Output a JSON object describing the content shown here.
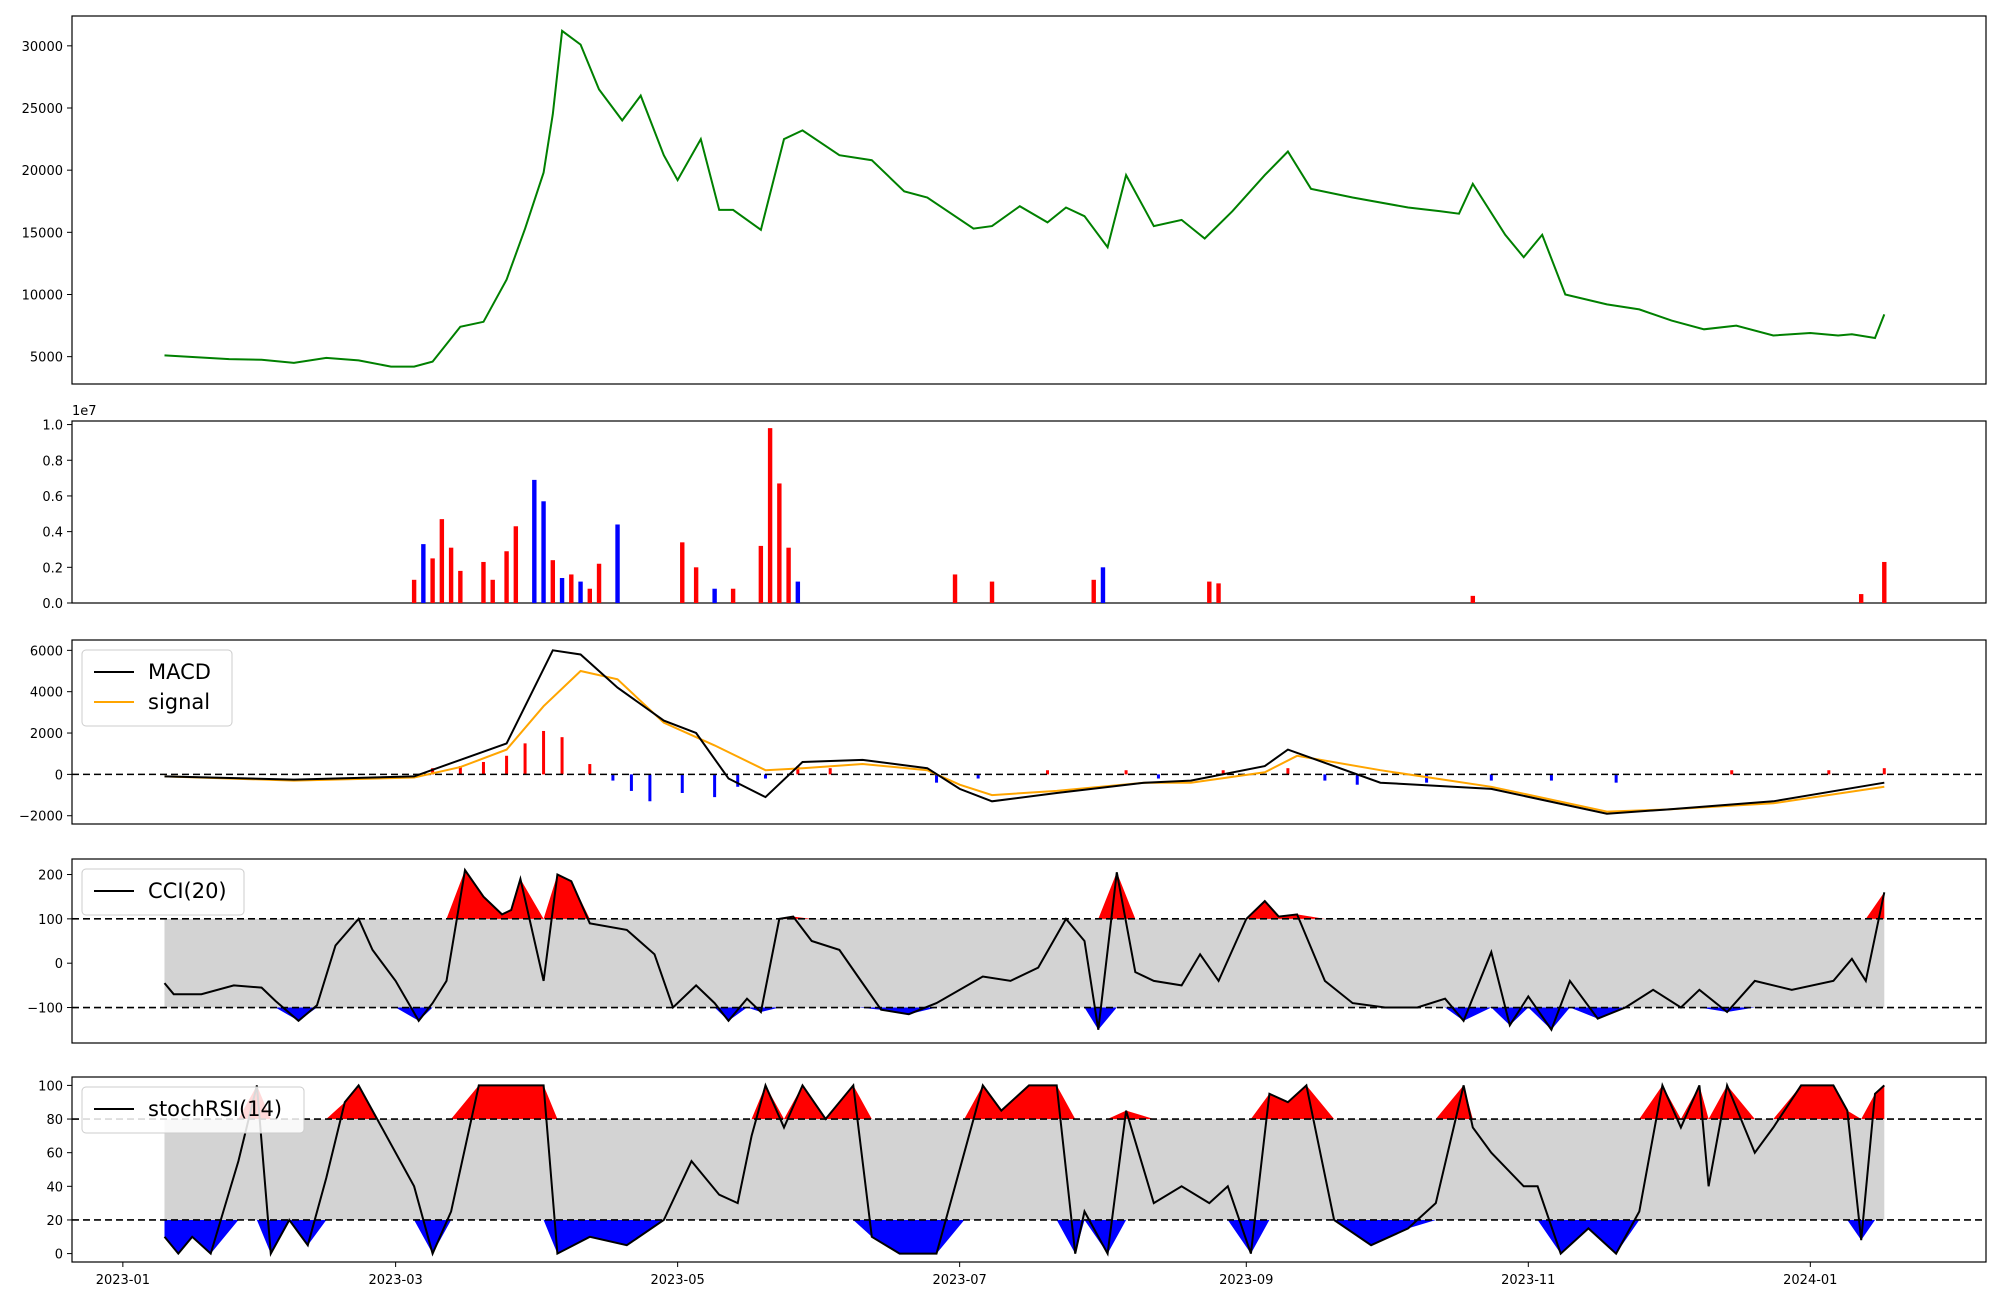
{
  "colors": {
    "price": "#008000",
    "up": "#ff0000",
    "down": "#0000ff",
    "macd": "#000000",
    "signal": "#ffa500",
    "band": "#d3d3d3"
  },
  "chart_data": [
    {
      "type": "line",
      "panel": "price",
      "x_range": [
        "2022-12-21",
        "2024-02-08"
      ],
      "ylim": [
        2800,
        32400
      ],
      "yticks": [
        5000,
        10000,
        15000,
        20000,
        25000,
        30000
      ],
      "ytick_labels": [
        "5000",
        "10000",
        "15000",
        "20000",
        "25000",
        "30000"
      ],
      "series": [
        {
          "x": [
            "2023-01-10",
            "2023-01-17",
            "2023-01-24",
            "2023-01-31",
            "2023-02-07",
            "2023-02-14",
            "2023-02-21",
            "2023-02-28",
            "2023-03-05",
            "2023-03-09",
            "2023-03-15",
            "2023-03-20",
            "2023-03-25",
            "2023-03-29",
            "2023-04-02",
            "2023-04-04",
            "2023-04-06",
            "2023-04-10",
            "2023-04-14",
            "2023-04-19",
            "2023-04-23",
            "2023-04-28",
            "2023-05-01",
            "2023-05-06",
            "2023-05-10",
            "2023-05-13",
            "2023-05-19",
            "2023-05-24",
            "2023-05-28",
            "2023-06-05",
            "2023-06-12",
            "2023-06-19",
            "2023-06-24",
            "2023-07-04",
            "2023-07-08",
            "2023-07-14",
            "2023-07-20",
            "2023-07-24",
            "2023-07-28",
            "2023-08-02",
            "2023-08-06",
            "2023-08-12",
            "2023-08-18",
            "2023-08-23",
            "2023-08-29",
            "2023-09-05",
            "2023-09-10",
            "2023-09-15",
            "2023-09-24",
            "2023-10-06",
            "2023-10-13",
            "2023-10-17",
            "2023-10-20",
            "2023-10-27",
            "2023-10-31",
            "2023-11-04",
            "2023-11-09",
            "2023-11-18",
            "2023-11-25",
            "2023-12-02",
            "2023-12-09",
            "2023-12-16",
            "2023-12-24",
            "2024-01-01",
            "2024-01-07",
            "2024-01-10",
            "2024-01-15",
            "2024-01-17"
          ],
          "values": [
            5100,
            4950,
            4800,
            4750,
            4500,
            4900,
            4700,
            4200,
            4200,
            4600,
            7400,
            7800,
            11200,
            15300,
            19800,
            24500,
            31200,
            30100,
            26500,
            24000,
            26000,
            21200,
            19200,
            22500,
            16800,
            16800,
            15200,
            22500,
            23200,
            21200,
            20800,
            18300,
            17800,
            15300,
            15500,
            17100,
            15800,
            17000,
            16300,
            13800,
            19600,
            15500,
            16000,
            14500,
            16700,
            19600,
            21500,
            18500,
            17800,
            17000,
            16700,
            16500,
            18900,
            14800,
            13000,
            14800,
            10000,
            9200,
            8800,
            7900,
            7200,
            7500,
            6700,
            6900,
            6700,
            6800,
            6500,
            8400
          ]
        }
      ]
    },
    {
      "type": "bar",
      "panel": "volume",
      "x_range": [
        "2022-12-21",
        "2024-02-08"
      ],
      "ylim": [
        0,
        10200000
      ],
      "yticks": [
        0,
        2000000,
        4000000,
        6000000,
        8000000,
        10000000
      ],
      "ytick_labels": [
        "0.0",
        "0.2",
        "0.4",
        "0.6",
        "0.8",
        "1.0"
      ],
      "scale_label": "1e7",
      "series": [
        {
          "x": [
            "2023-03-05",
            "2023-03-07",
            "2023-03-09",
            "2023-03-11",
            "2023-03-13",
            "2023-03-15",
            "2023-03-20",
            "2023-03-22",
            "2023-03-25",
            "2023-03-27",
            "2023-03-31",
            "2023-04-02",
            "2023-04-04",
            "2023-04-06",
            "2023-04-08",
            "2023-04-10",
            "2023-04-12",
            "2023-04-14",
            "2023-04-18",
            "2023-05-02",
            "2023-05-05",
            "2023-05-09",
            "2023-05-13",
            "2023-05-19",
            "2023-05-21",
            "2023-05-23",
            "2023-05-25",
            "2023-05-27",
            "2023-06-30",
            "2023-07-08",
            "2023-07-30",
            "2023-08-01",
            "2023-08-24",
            "2023-08-26",
            "2023-10-20",
            "2024-01-12",
            "2024-01-17"
          ],
          "values": [
            1300000,
            3300000,
            2500000,
            4700000,
            3100000,
            1800000,
            2300000,
            1300000,
            2900000,
            4300000,
            6900000,
            5700000,
            2400000,
            1400000,
            1600000,
            1200000,
            800000,
            2200000,
            4400000,
            3400000,
            2000000,
            800000,
            800000,
            3200000,
            9800000,
            6700000,
            3100000,
            1200000,
            1600000,
            1200000,
            1300000,
            2000000,
            1200000,
            1100000,
            400000,
            500000,
            2300000
          ],
          "colors": [
            "up",
            "down",
            "up",
            "up",
            "up",
            "up",
            "up",
            "up",
            "up",
            "up",
            "down",
            "down",
            "up",
            "down",
            "up",
            "down",
            "up",
            "up",
            "down",
            "up",
            "up",
            "down",
            "up",
            "up",
            "up",
            "up",
            "up",
            "down",
            "up",
            "up",
            "up",
            "down",
            "up",
            "up",
            "up",
            "up",
            "up"
          ]
        }
      ]
    },
    {
      "type": "line",
      "panel": "macd",
      "x_range": [
        "2022-12-21",
        "2024-02-08"
      ],
      "ylim": [
        -2400,
        6500
      ],
      "yticks": [
        -2000,
        0,
        2000,
        4000,
        6000
      ],
      "ytick_labels": [
        "−2000",
        "0",
        "2000",
        "4000",
        "6000"
      ],
      "reference_lines": [
        0
      ],
      "legend": [
        "MACD",
        "signal"
      ],
      "series": [
        {
          "name": "MACD",
          "x": [
            "2023-01-10",
            "2023-02-07",
            "2023-03-05",
            "2023-03-15",
            "2023-03-25",
            "2023-04-04",
            "2023-04-10",
            "2023-04-18",
            "2023-04-28",
            "2023-05-05",
            "2023-05-12",
            "2023-05-20",
            "2023-05-28",
            "2023-06-10",
            "2023-06-24",
            "2023-07-01",
            "2023-07-08",
            "2023-07-22",
            "2023-08-10",
            "2023-08-20",
            "2023-09-05",
            "2023-09-10",
            "2023-09-30",
            "2023-10-24",
            "2023-11-18",
            "2023-12-01",
            "2023-12-24",
            "2024-01-17"
          ],
          "values": [
            -100,
            -250,
            -100,
            700,
            1500,
            6000,
            5800,
            4200,
            2600,
            2000,
            -200,
            -1100,
            600,
            700,
            300,
            -700,
            -1300,
            -900,
            -400,
            -300,
            400,
            1200,
            -400,
            -700,
            -1900,
            -1700,
            -1300,
            -400
          ]
        },
        {
          "name": "signal",
          "x": [
            "2023-01-10",
            "2023-02-07",
            "2023-03-05",
            "2023-03-15",
            "2023-03-25",
            "2023-04-02",
            "2023-04-10",
            "2023-04-18",
            "2023-04-28",
            "2023-05-09",
            "2023-05-20",
            "2023-05-28",
            "2023-06-10",
            "2023-06-24",
            "2023-07-01",
            "2023-07-08",
            "2023-07-22",
            "2023-08-10",
            "2023-08-20",
            "2023-09-05",
            "2023-09-12",
            "2023-09-30",
            "2023-10-24",
            "2023-11-18",
            "2023-12-01",
            "2023-12-24",
            "2024-01-17"
          ],
          "values": [
            -100,
            -300,
            -150,
            350,
            1200,
            3300,
            5000,
            4600,
            2500,
            1400,
            200,
            300,
            500,
            200,
            -500,
            -1000,
            -800,
            -400,
            -400,
            100,
            900,
            200,
            -600,
            -1800,
            -1700,
            -1400,
            -600
          ]
        }
      ],
      "histogram": {
        "x": [
          "2023-03-09",
          "2023-03-15",
          "2023-03-20",
          "2023-03-25",
          "2023-03-29",
          "2023-04-02",
          "2023-04-06",
          "2023-04-12",
          "2023-04-17",
          "2023-04-21",
          "2023-04-25",
          "2023-05-02",
          "2023-05-09",
          "2023-05-14",
          "2023-05-20",
          "2023-05-27",
          "2023-06-03",
          "2023-06-26",
          "2023-07-05",
          "2023-07-20",
          "2023-08-06",
          "2023-08-13",
          "2023-08-27",
          "2023-09-10",
          "2023-09-18",
          "2023-09-25",
          "2023-10-10",
          "2023-10-24",
          "2023-11-06",
          "2023-11-20",
          "2023-12-15",
          "2024-01-05",
          "2024-01-17"
        ],
        "values": [
          300,
          400,
          600,
          900,
          1500,
          2100,
          1800,
          500,
          -300,
          -800,
          -1300,
          -900,
          -1100,
          -600,
          -200,
          400,
          300,
          -400,
          -200,
          200,
          200,
          -200,
          200,
          300,
          -300,
          -500,
          -400,
          -300,
          -300,
          -400,
          200,
          200,
          300
        ]
      }
    },
    {
      "type": "area",
      "panel": "cci",
      "x_range": [
        "2022-12-21",
        "2024-02-08"
      ],
      "ylim": [
        -180,
        235
      ],
      "yticks": [
        -100,
        0,
        100,
        200
      ],
      "ytick_labels": [
        "−100",
        "0",
        "100",
        "200"
      ],
      "reference_lines": [
        -100,
        100
      ],
      "legend": [
        "CCI(20)"
      ],
      "series": [
        {
          "name": "CCI(20)",
          "x": [
            "2023-01-10",
            "2023-01-12",
            "2023-01-18",
            "2023-01-25",
            "2023-01-31",
            "2023-02-03",
            "2023-02-08",
            "2023-02-12",
            "2023-02-16",
            "2023-02-21",
            "2023-02-24",
            "2023-03-01",
            "2023-03-06",
            "2023-03-09",
            "2023-03-12",
            "2023-03-16",
            "2023-03-20",
            "2023-03-24",
            "2023-03-26",
            "2023-03-28",
            "2023-04-02",
            "2023-04-05",
            "2023-04-08",
            "2023-04-12",
            "2023-04-20",
            "2023-04-26",
            "2023-04-30",
            "2023-05-05",
            "2023-05-09",
            "2023-05-12",
            "2023-05-16",
            "2023-05-19",
            "2023-05-23",
            "2023-05-26",
            "2023-05-30",
            "2023-06-05",
            "2023-06-09",
            "2023-06-14",
            "2023-06-20",
            "2023-06-26",
            "2023-07-06",
            "2023-07-12",
            "2023-07-18",
            "2023-07-24",
            "2023-07-28",
            "2023-07-31",
            "2023-08-04",
            "2023-08-08",
            "2023-08-12",
            "2023-08-18",
            "2023-08-22",
            "2023-08-26",
            "2023-09-01",
            "2023-09-05",
            "2023-09-08",
            "2023-09-12",
            "2023-09-18",
            "2023-09-24",
            "2023-10-01",
            "2023-10-08",
            "2023-10-14",
            "2023-10-18",
            "2023-10-24",
            "2023-10-28",
            "2023-11-01",
            "2023-11-06",
            "2023-11-10",
            "2023-11-16",
            "2023-11-22",
            "2023-11-28",
            "2023-12-04",
            "2023-12-08",
            "2023-12-14",
            "2023-12-20",
            "2023-12-28",
            "2024-01-06",
            "2024-01-10",
            "2024-01-13",
            "2024-01-17"
          ],
          "values": [
            -45,
            -70,
            -70,
            -50,
            -55,
            -85,
            -130,
            -95,
            40,
            100,
            30,
            -40,
            -130,
            -90,
            -40,
            210,
            150,
            110,
            120,
            190,
            -40,
            200,
            185,
            90,
            75,
            20,
            -100,
            -50,
            -90,
            -130,
            -80,
            -110,
            100,
            105,
            50,
            30,
            -30,
            -105,
            -115,
            -90,
            -30,
            -40,
            -10,
            100,
            50,
            -150,
            205,
            -20,
            -40,
            -50,
            20,
            -40,
            100,
            140,
            105,
            110,
            -40,
            -90,
            -100,
            -100,
            -80,
            -130,
            25,
            -140,
            -75,
            -150,
            -40,
            -125,
            -100,
            -60,
            -100,
            -60,
            -110,
            -40,
            -60,
            -40,
            10,
            -40,
            160
          ]
        }
      ]
    },
    {
      "type": "area",
      "panel": "stochrsi",
      "x_range": [
        "2022-12-21",
        "2024-02-08"
      ],
      "ylim": [
        -5,
        105
      ],
      "yticks": [
        0,
        20,
        40,
        60,
        80,
        100
      ],
      "ytick_labels": [
        "0",
        "20",
        "40",
        "60",
        "80",
        "100"
      ],
      "reference_lines": [
        20,
        80
      ],
      "legend": [
        "stochRSI(14)"
      ],
      "series": [
        {
          "name": "stochRSI(14)",
          "x": [
            "2023-01-10",
            "2023-01-13",
            "2023-01-16",
            "2023-01-20",
            "2023-01-26",
            "2023-01-30",
            "2023-02-02",
            "2023-02-06",
            "2023-02-10",
            "2023-02-14",
            "2023-02-18",
            "2023-02-21",
            "2023-02-25",
            "2023-03-05",
            "2023-03-09",
            "2023-03-13",
            "2023-03-19",
            "2023-03-25",
            "2023-04-02",
            "2023-04-05",
            "2023-04-12",
            "2023-04-20",
            "2023-04-28",
            "2023-05-04",
            "2023-05-10",
            "2023-05-14",
            "2023-05-17",
            "2023-05-20",
            "2023-05-24",
            "2023-05-28",
            "2023-06-02",
            "2023-06-08",
            "2023-06-12",
            "2023-06-18",
            "2023-06-26",
            "2023-07-02",
            "2023-07-06",
            "2023-07-10",
            "2023-07-16",
            "2023-07-22",
            "2023-07-26",
            "2023-07-28",
            "2023-08-02",
            "2023-08-06",
            "2023-08-12",
            "2023-08-18",
            "2023-08-24",
            "2023-08-28",
            "2023-09-02",
            "2023-09-06",
            "2023-09-10",
            "2023-09-14",
            "2023-09-20",
            "2023-09-28",
            "2023-10-06",
            "2023-10-12",
            "2023-10-18",
            "2023-10-20",
            "2023-10-24",
            "2023-10-31",
            "2023-11-03",
            "2023-11-08",
            "2023-11-14",
            "2023-11-20",
            "2023-11-25",
            "2023-11-30",
            "2023-12-04",
            "2023-12-08",
            "2023-12-10",
            "2023-12-14",
            "2023-12-20",
            "2023-12-24",
            "2023-12-30",
            "2024-01-06",
            "2024-01-09",
            "2024-01-12",
            "2024-01-15",
            "2024-01-17"
          ],
          "values": [
            10,
            0,
            10,
            0,
            55,
            100,
            0,
            20,
            5,
            45,
            90,
            100,
            80,
            40,
            0,
            25,
            100,
            100,
            100,
            0,
            10,
            5,
            20,
            55,
            35,
            30,
            70,
            100,
            75,
            100,
            80,
            100,
            10,
            0,
            0,
            60,
            100,
            85,
            100,
            100,
            0,
            25,
            0,
            85,
            30,
            40,
            30,
            40,
            0,
            95,
            90,
            100,
            20,
            5,
            15,
            30,
            100,
            75,
            60,
            40,
            40,
            0,
            15,
            0,
            25,
            100,
            75,
            100,
            40,
            100,
            60,
            75,
            100,
            100,
            85,
            8,
            95,
            100
          ]
        }
      ]
    }
  ],
  "x_axis": {
    "ticks": [
      "2023-01-01",
      "2023-03-01",
      "2023-05-01",
      "2023-07-01",
      "2023-09-01",
      "2023-11-01",
      "2024-01-01"
    ],
    "labels": [
      "2023-01",
      "2023-03",
      "2023-05",
      "2023-07",
      "2023-09",
      "2023-11",
      "2024-01"
    ]
  }
}
